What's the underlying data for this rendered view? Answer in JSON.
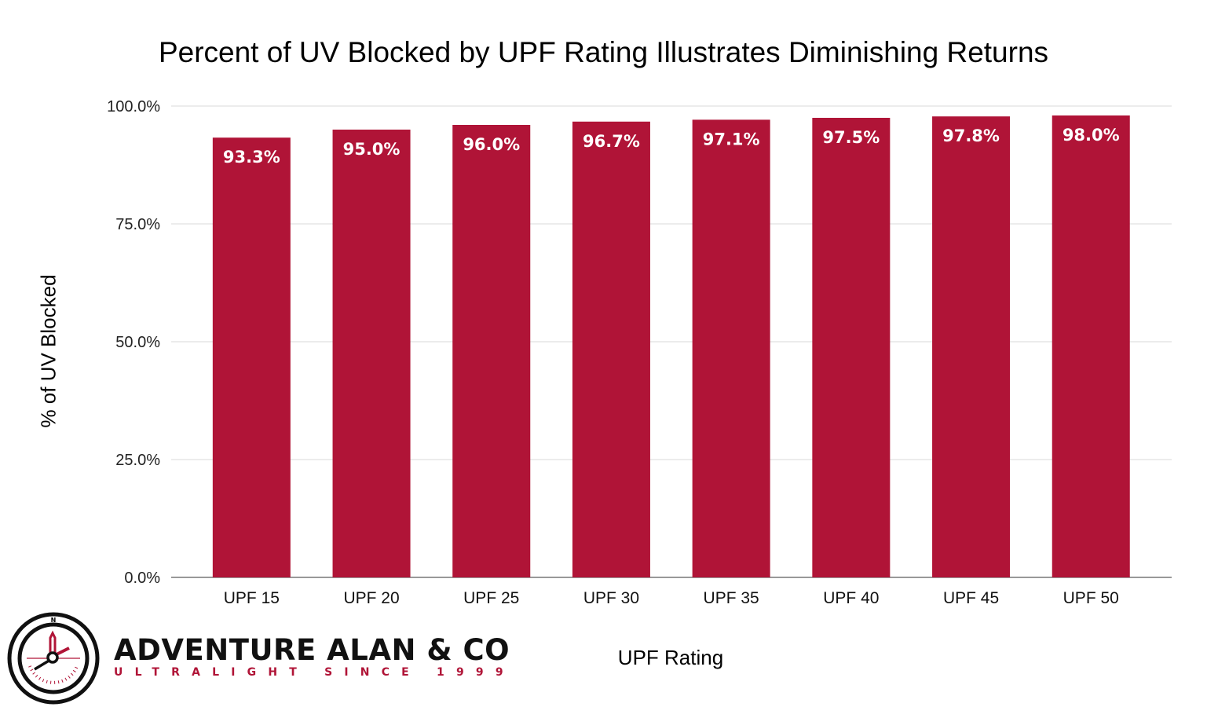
{
  "chart_data": {
    "type": "bar",
    "title": "Percent of UV Blocked by UPF Rating Illustrates Diminishing Returns",
    "xlabel": "UPF Rating",
    "ylabel": "% of UV Blocked",
    "categories": [
      "UPF 15",
      "UPF 20",
      "UPF 25",
      "UPF 30",
      "UPF 35",
      "UPF 40",
      "UPF 45",
      "UPF 50"
    ],
    "values": [
      93.3,
      95.0,
      96.0,
      96.7,
      97.1,
      97.5,
      97.8,
      98.0
    ],
    "data_labels": [
      "93.3%",
      "95.0%",
      "96.0%",
      "96.7%",
      "97.1%",
      "97.5%",
      "97.8%",
      "98.0%"
    ],
    "ylim": [
      0,
      100
    ],
    "yticks": [
      0,
      25,
      50,
      75,
      100
    ],
    "ytick_labels": [
      "0.0%",
      "25.0%",
      "50.0%",
      "75.0%",
      "100.0%"
    ],
    "grid": true,
    "legend": "none",
    "bar_color": "#b01437"
  },
  "logo": {
    "name": "ADVENTURE ALAN & CO",
    "tagline": "ULTRALIGHT SINCE 1999",
    "compass_letter": "N"
  }
}
